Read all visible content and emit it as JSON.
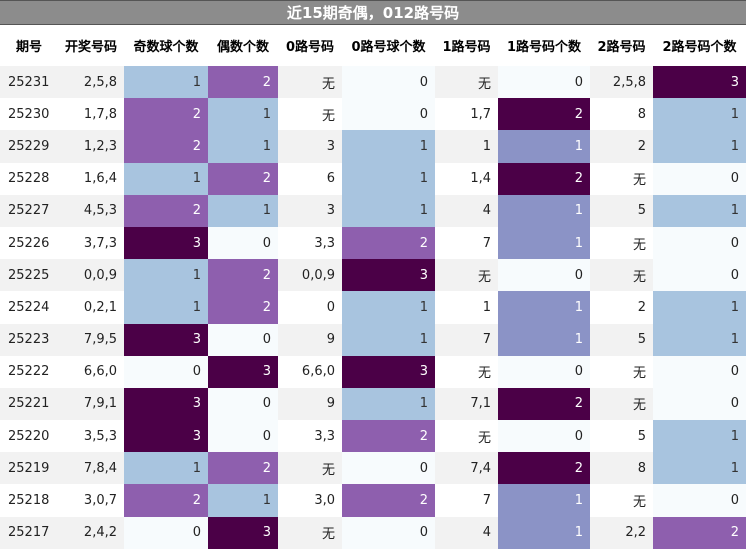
{
  "title": "近15期奇偶，012路号码",
  "columns": [
    "期号",
    "开奖号码",
    "奇数球个数",
    "偶数个数",
    "0路号码",
    "0路号球个数",
    "1路号码",
    "1路号码个数",
    "2路号码",
    "2路号码个数"
  ],
  "rows": [
    [
      "25231",
      "2,5,8",
      "1",
      "2",
      "无",
      "0",
      "无",
      "0",
      "2,5,8",
      "3"
    ],
    [
      "25230",
      "1,7,8",
      "2",
      "1",
      "无",
      "0",
      "1,7",
      "2",
      "8",
      "1"
    ],
    [
      "25229",
      "1,2,3",
      "2",
      "1",
      "3",
      "1",
      "1",
      "1",
      "2",
      "1"
    ],
    [
      "25228",
      "1,6,4",
      "1",
      "2",
      "6",
      "1",
      "1,4",
      "2",
      "无",
      "0"
    ],
    [
      "25227",
      "4,5,3",
      "2",
      "1",
      "3",
      "1",
      "4",
      "1",
      "5",
      "1"
    ],
    [
      "25226",
      "3,7,3",
      "3",
      "0",
      "3,3",
      "2",
      "7",
      "1",
      "无",
      "0"
    ],
    [
      "25225",
      "0,0,9",
      "1",
      "2",
      "0,0,9",
      "3",
      "无",
      "0",
      "无",
      "0"
    ],
    [
      "25224",
      "0,2,1",
      "1",
      "2",
      "0",
      "1",
      "1",
      "1",
      "2",
      "1"
    ],
    [
      "25223",
      "7,9,5",
      "3",
      "0",
      "9",
      "1",
      "7",
      "1",
      "5",
      "1"
    ],
    [
      "25222",
      "6,6,0",
      "0",
      "3",
      "6,6,0",
      "3",
      "无",
      "0",
      "无",
      "0"
    ],
    [
      "25221",
      "7,9,1",
      "3",
      "0",
      "9",
      "1",
      "7,1",
      "2",
      "无",
      "0"
    ],
    [
      "25220",
      "3,5,3",
      "3",
      "0",
      "3,3",
      "2",
      "无",
      "0",
      "5",
      "1"
    ],
    [
      "25219",
      "7,8,4",
      "1",
      "2",
      "无",
      "0",
      "7,4",
      "2",
      "8",
      "1"
    ],
    [
      "25218",
      "3,0,7",
      "2",
      "1",
      "3,0",
      "2",
      "7",
      "1",
      "无",
      "0"
    ],
    [
      "25217",
      "2,4,2",
      "0",
      "3",
      "无",
      "0",
      "4",
      "1",
      "2,2",
      "2"
    ]
  ],
  "colors": {
    "count_1": "#a8c4df",
    "count_2": "#8e5fae",
    "count_3": "#4b0047",
    "count_0": "#f7fbfd",
    "road1_count_1": "#8b93c6",
    "header_bar": "#8c8c8c"
  }
}
